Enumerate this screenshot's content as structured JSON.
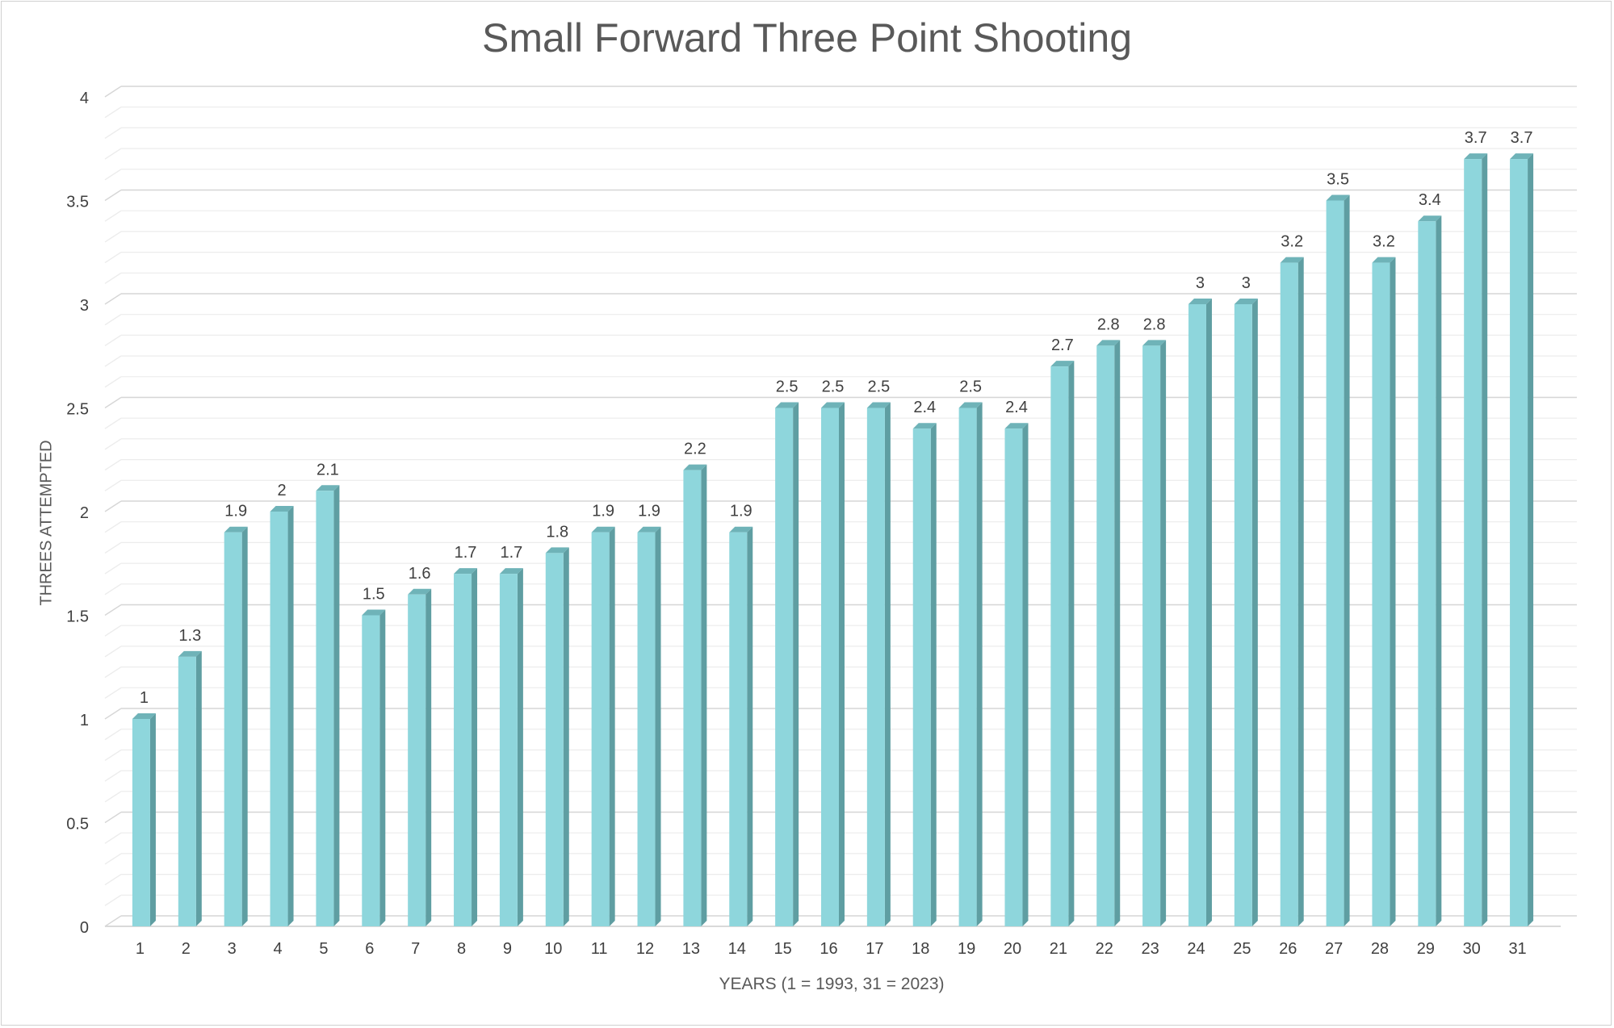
{
  "chart_data": {
    "type": "bar",
    "title": "Small Forward Three Point Shooting",
    "xlabel": "YEARS (1 = 1993, 31 = 2023)",
    "ylabel": "THREES ATTEMPTED",
    "categories": [
      "1",
      "2",
      "3",
      "4",
      "5",
      "6",
      "7",
      "8",
      "9",
      "10",
      "11",
      "12",
      "13",
      "14",
      "15",
      "16",
      "17",
      "18",
      "19",
      "20",
      "21",
      "22",
      "23",
      "24",
      "25",
      "26",
      "27",
      "28",
      "29",
      "30",
      "31"
    ],
    "values": [
      1,
      1.3,
      1.9,
      2,
      2.1,
      1.5,
      1.6,
      1.7,
      1.7,
      1.8,
      1.9,
      1.9,
      2.2,
      1.9,
      2.5,
      2.5,
      2.5,
      2.4,
      2.5,
      2.4,
      2.7,
      2.8,
      2.8,
      3,
      3,
      3.2,
      3.5,
      3.2,
      3.4,
      3.7,
      3.7
    ],
    "data_labels": [
      "1",
      "1.3",
      "1.9",
      "2",
      "2.1",
      "1.5",
      "1.6",
      "1.7",
      "1.7",
      "1.8",
      "1.9",
      "1.9",
      "2.2",
      "1.9",
      "2.5",
      "2.5",
      "2.5",
      "2.4",
      "2.5",
      "2.4",
      "2.7",
      "2.8",
      "2.8",
      "3",
      "3",
      "3.2",
      "3.5",
      "3.2",
      "3.4",
      "3.7",
      "3.7"
    ],
    "ylim": [
      0,
      4
    ],
    "yticks": [
      "0",
      "0.5",
      "1",
      "1.5",
      "2",
      "2.5",
      "3",
      "3.5",
      "4"
    ],
    "grid": true,
    "legend": "none",
    "bar_color": "#8ed6dc",
    "bar_side_color": "#5f9ea2",
    "bar_top_color": "#6fb3b8"
  }
}
